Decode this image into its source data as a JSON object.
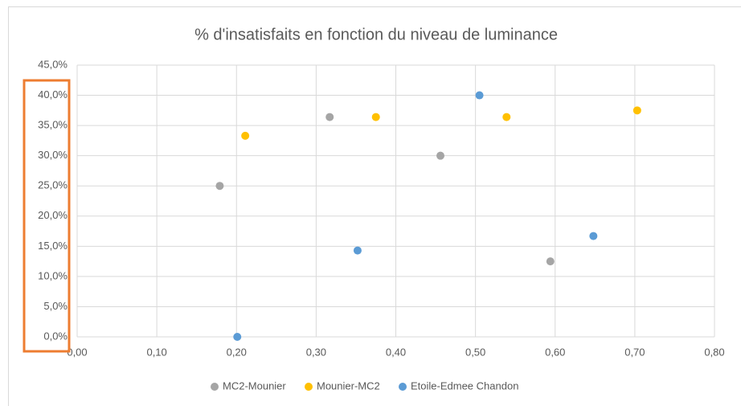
{
  "chart_data": {
    "type": "scatter",
    "title": "% d'insatisfaits en fonction du niveau de luminance",
    "series": [
      {
        "name": "MC2-Mounier",
        "color": "#a5a5a5",
        "x": [
          0.179,
          0.317,
          0.456,
          0.594
        ],
        "values": [
          25,
          36.4,
          30,
          12.5
        ]
      },
      {
        "name": "Mounier-MC2",
        "color": "#ffc000",
        "x": [
          0.211,
          0.375,
          0.539,
          0.703
        ],
        "values": [
          33.3,
          36.4,
          36.4,
          37.5
        ]
      },
      {
        "name": "Etoile-Edmee Chandon",
        "color": "#5b9bd5",
        "x": [
          0.201,
          0.352,
          0.505,
          0.648
        ],
        "values": [
          0,
          14.3,
          40,
          16.7
        ]
      }
    ],
    "xlim": [
      0,
      0.8
    ],
    "xticks": [
      {
        "value": 0,
        "label": "0,00"
      },
      {
        "value": 0.1,
        "label": "0,10"
      },
      {
        "value": 0.2,
        "label": "0,20"
      },
      {
        "value": 0.3,
        "label": "0,30"
      },
      {
        "value": 0.4,
        "label": "0,40"
      },
      {
        "value": 0.5,
        "label": "0,50"
      },
      {
        "value": 0.6,
        "label": "0,60"
      },
      {
        "value": 0.7,
        "label": "0,70"
      },
      {
        "value": 0.8,
        "label": "0,80"
      }
    ],
    "ylim": [
      0,
      45
    ],
    "yticks": [
      {
        "value": 0,
        "label": "0,0%"
      },
      {
        "value": 5,
        "label": "5,0%"
      },
      {
        "value": 10,
        "label": "10,0%"
      },
      {
        "value": 15,
        "label": "15,0%"
      },
      {
        "value": 20,
        "label": "20,0%"
      },
      {
        "value": 25,
        "label": "25,0%"
      },
      {
        "value": 30,
        "label": "30,0%"
      },
      {
        "value": 35,
        "label": "35,0%"
      },
      {
        "value": 40,
        "label": "40,0%"
      },
      {
        "value": 45,
        "label": "45,0%"
      }
    ],
    "grid": true,
    "legend": "bottom"
  }
}
